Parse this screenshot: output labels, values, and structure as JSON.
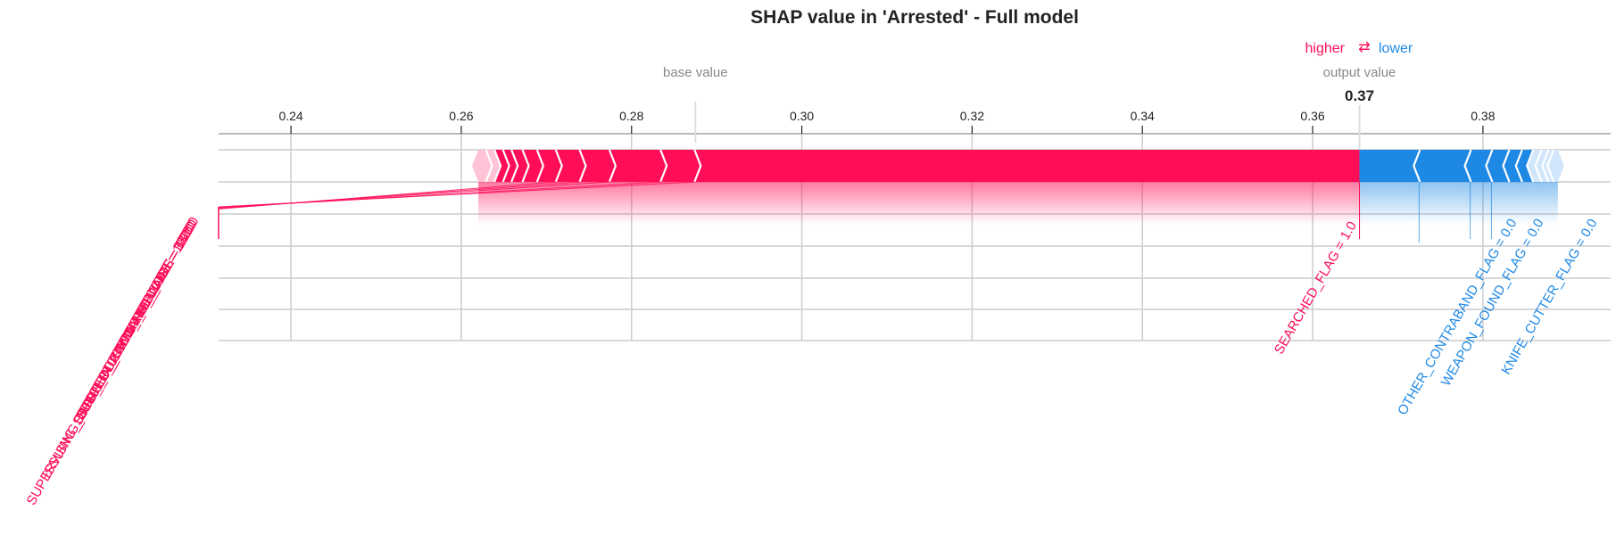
{
  "chart_data": {
    "type": "shap-force",
    "title": "SHAP value in 'Arrested' - Full model",
    "legend": {
      "higher": "higher",
      "arrow": "⇄",
      "lower": "lower"
    },
    "base_value_label": "base value",
    "output_value_label": "output value",
    "output_value_text": "0.37",
    "base_value": 0.2875,
    "output_value": 0.3655,
    "xlim": [
      0.2315,
      0.395
    ],
    "xticks": [
      "0.24",
      "0.26",
      "0.28",
      "0.30",
      "0.32",
      "0.34",
      "0.36",
      "0.38"
    ],
    "xtick_values": [
      0.24,
      0.26,
      0.28,
      0.3,
      0.32,
      0.34,
      0.36,
      0.38
    ],
    "higher_segments": [
      [
        0.262,
        0.263
      ],
      [
        0.263,
        0.264
      ],
      [
        0.264,
        0.265
      ],
      [
        0.265,
        0.266
      ],
      [
        0.266,
        0.2673
      ],
      [
        0.2673,
        0.269
      ],
      [
        0.269,
        0.2712
      ],
      [
        0.2712,
        0.274
      ],
      [
        0.274,
        0.2775
      ],
      [
        0.2775,
        0.2835
      ],
      [
        0.2835,
        0.2875
      ],
      [
        0.2875,
        0.3655
      ]
    ],
    "lower_segments": [
      [
        0.3655,
        0.3725
      ],
      [
        0.3725,
        0.3785
      ],
      [
        0.3785,
        0.381
      ],
      [
        0.381,
        0.383
      ],
      [
        0.383,
        0.3845
      ],
      [
        0.3845,
        0.3858
      ],
      [
        0.3858,
        0.3868
      ],
      [
        0.3868,
        0.3876
      ],
      [
        0.3876,
        0.3882
      ],
      [
        0.3882,
        0.3888
      ]
    ],
    "higher_features": [
      {
        "label": "SEARCHED_FLAG = 1.0",
        "value": 0.3655
      },
      {
        "label": "SUPERVISING_OFFICER_COMMAND_CODE = 122.0",
        "value": 0.2875
      },
      {
        "label": "STOP_LOCATION_PRECINCT = 122.0",
        "value": 0.2835
      },
      {
        "label": "ISSUING_OFFICER_COMMAND_CODE = 122.0",
        "value": 0.2775
      },
      {
        "label": "STOP_DURATION_MINUTES = 10.0",
        "value": 0.274
      },
      {
        "label": "SUSPECT_REPORTED_AGE = 38.0",
        "value": 0.2712
      }
    ],
    "lower_features": [
      {
        "label": "OTHER_CONTRABAND_FLAG = 0.0",
        "value": 0.3725
      },
      {
        "label": "WEAPON_FOUND_FLAG = 0.0",
        "value": 0.3785
      },
      {
        "label": "KNIFE_CUTTER_FLAG = 0.0",
        "value": 0.381
      }
    ]
  },
  "colors": {
    "higher": "#ff0d57",
    "lower": "#1e88e5",
    "higher_light": "#ffc3d5",
    "lower_light": "#d1e6fa",
    "grid": "#cccccc",
    "text": "#222222",
    "muted": "#888888"
  }
}
